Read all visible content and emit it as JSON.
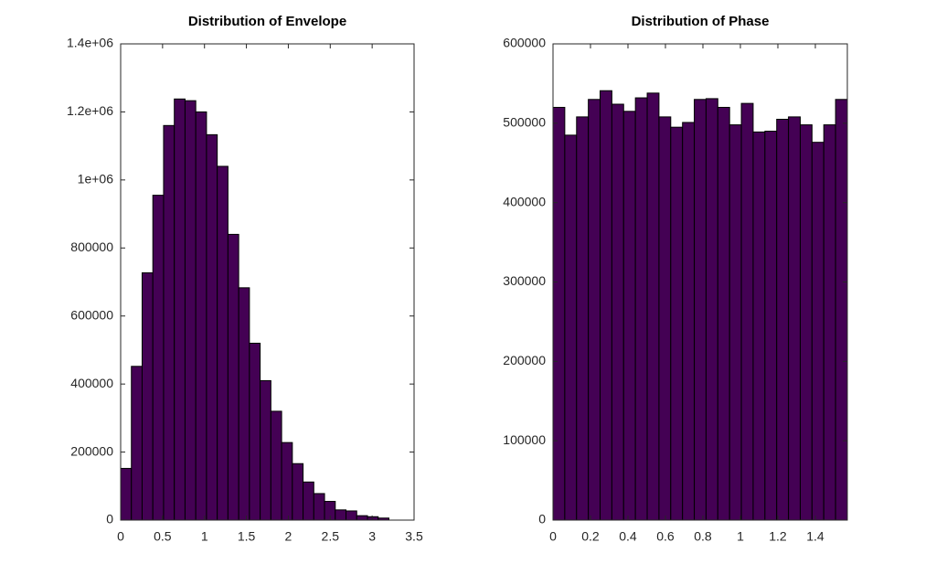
{
  "chart_data": [
    {
      "type": "histogram",
      "title": "Distribution of Envelope",
      "color": "#440154",
      "edgecolor": "#000000",
      "bins": [
        0,
        0.128,
        0.256,
        0.384,
        0.512,
        0.64,
        0.768,
        0.896,
        1.024,
        1.152,
        1.28,
        1.408,
        1.536,
        1.664,
        1.792,
        1.92,
        2.048,
        2.176,
        2.304,
        2.432,
        2.56,
        2.688,
        2.816,
        2.944,
        3.072,
        3.2
      ],
      "values": [
        152000,
        452000,
        727000,
        955000,
        1160000,
        1238000,
        1233000,
        1200000,
        1133000,
        1040000,
        840000,
        683000,
        520000,
        410000,
        320000,
        228000,
        166000,
        112000,
        78000,
        55000,
        30000,
        27000,
        13000,
        10000,
        6000
      ],
      "xlim": [
        0,
        3.5
      ],
      "xticks": [
        0,
        0.5,
        1,
        1.5,
        2,
        2.5,
        3,
        3.5
      ],
      "ylim": [
        0,
        1400000
      ],
      "yticks": [
        0,
        200000,
        400000,
        600000,
        800000,
        {
          "value": 1000000,
          "label": "1e+06"
        },
        {
          "value": 1200000,
          "label": "1.2e+06"
        },
        {
          "value": 1400000,
          "label": "1.4e+06"
        }
      ]
    },
    {
      "type": "histogram",
      "title": "Distribution of Phase",
      "color": "#440154",
      "edgecolor": "#000000",
      "bins": [
        0,
        0.0628,
        0.1257,
        0.1885,
        0.2513,
        0.3142,
        0.377,
        0.4398,
        0.5027,
        0.5655,
        0.6283,
        0.6912,
        0.754,
        0.8168,
        0.8796,
        0.9425,
        1.0053,
        1.0681,
        1.131,
        1.1938,
        1.2566,
        1.3195,
        1.3823,
        1.4451,
        1.508,
        1.5708
      ],
      "values": [
        520000,
        485000,
        508000,
        530000,
        541000,
        524000,
        515000,
        532000,
        538000,
        508000,
        495000,
        501000,
        530000,
        531000,
        520000,
        498000,
        525000,
        489000,
        490000,
        505000,
        508000,
        498000,
        476000,
        498000,
        530000
      ],
      "xlim": [
        0,
        1.5708
      ],
      "xticks": [
        0,
        0.2,
        0.4,
        0.6,
        0.8,
        1,
        1.2,
        1.4
      ],
      "ylim": [
        0,
        600000
      ],
      "yticks": [
        0,
        100000,
        200000,
        300000,
        400000,
        500000,
        600000
      ]
    }
  ]
}
